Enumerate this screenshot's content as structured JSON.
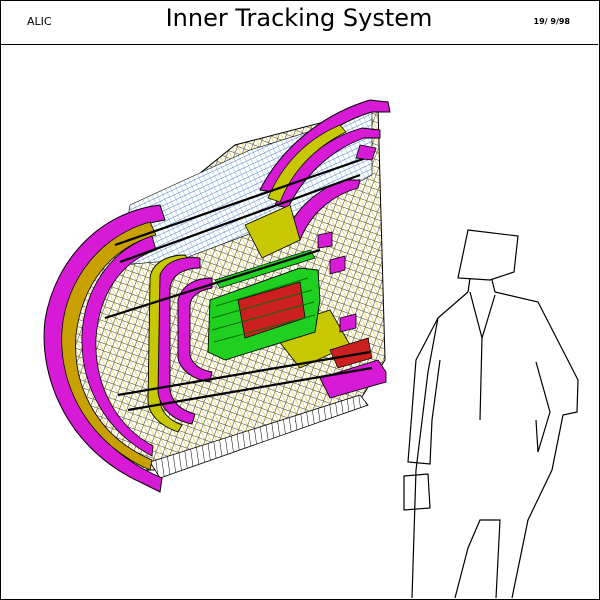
{
  "header": {
    "left_label": "ALIC",
    "title": "Inner Tracking System",
    "date": "19/ 9/98"
  },
  "colors": {
    "magenta": "#d61ad6",
    "olive": "#c8c800",
    "green": "#20d020",
    "red": "#cc2020",
    "cyan": "#20c8c8",
    "blue": "#2030d0",
    "black": "#000000",
    "background": "#ffffff"
  },
  "figure": {
    "detector": "ITS detector cutaway drawing",
    "person": "human scale figure outline"
  }
}
